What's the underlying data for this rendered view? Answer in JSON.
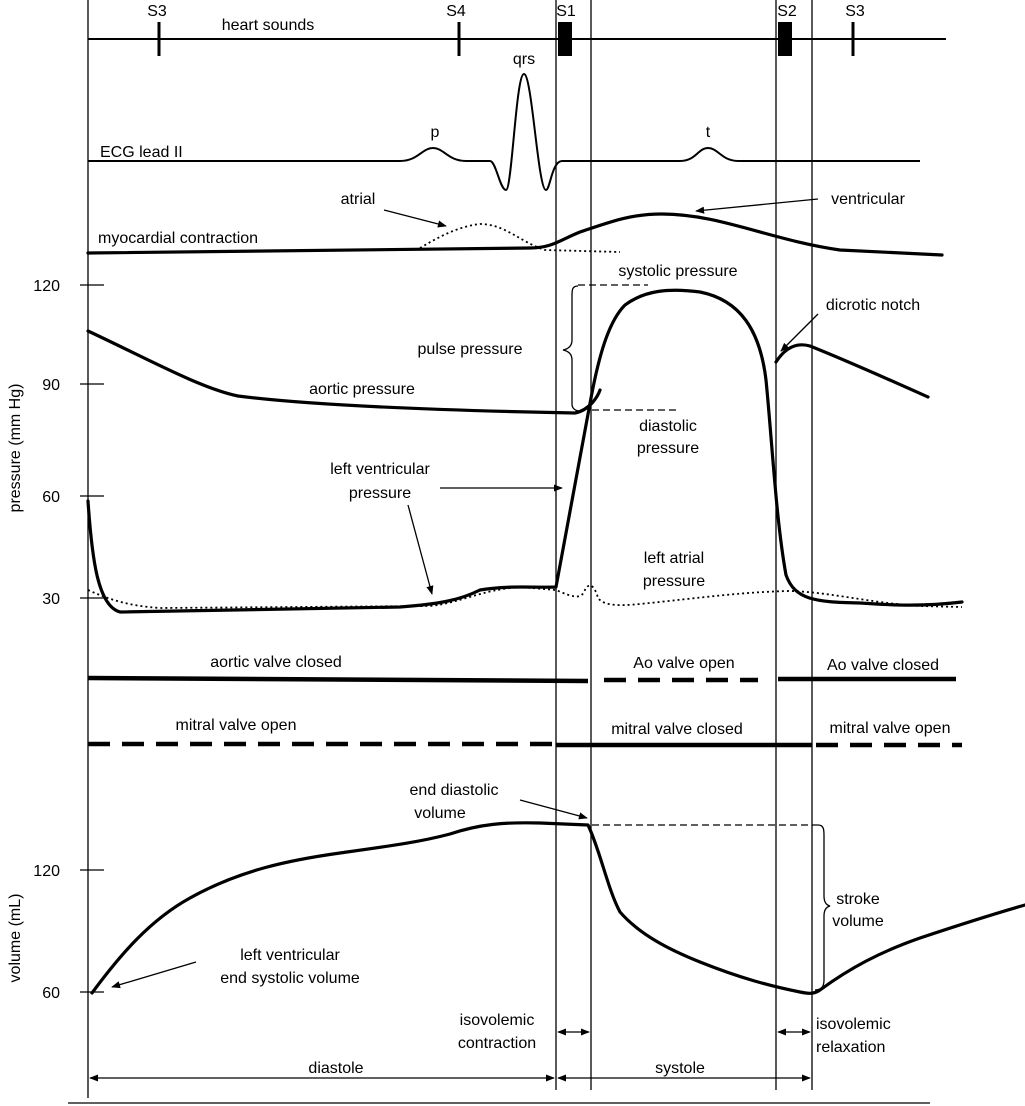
{
  "heart_sounds": {
    "title": "heart sounds",
    "markers": [
      "S3",
      "S4",
      "S1",
      "S2",
      "S3"
    ]
  },
  "ecg": {
    "label": "ECG lead II",
    "waves": [
      "p",
      "qrs",
      "t"
    ]
  },
  "contraction": {
    "label": "myocardial contraction",
    "atrial": "atrial",
    "ventricular": "ventricular"
  },
  "pressure_axis": {
    "label": "pressure (mm Hg)",
    "ticks": [
      "120",
      "90",
      "60",
      "30"
    ]
  },
  "pressure_labels": {
    "systolic": "systolic pressure",
    "pulse": "pulse pressure",
    "dicrotic": "dicrotic notch",
    "aortic": "aortic pressure",
    "diastolic_line1": "diastolic",
    "diastolic_line2": "pressure",
    "lv_line1": "left ventricular",
    "lv_line2": "pressure",
    "la_line1": "left atrial",
    "la_line2": "pressure"
  },
  "valves": {
    "aortic_closed": "aortic valve  closed",
    "ao_open": "Ao valve  open",
    "ao_closed": "Ao valve  closed",
    "mitral_open": "mitral valve  open",
    "mitral_closed": "mitral valve  closed",
    "mitral_open_2": "mitral valve  open"
  },
  "volume_axis": {
    "label": "volume  (mL)",
    "ticks": [
      "120",
      "60"
    ]
  },
  "volume_labels": {
    "edv_line1": "end diastolic",
    "edv_line2": "volume",
    "stroke_line1": "stroke",
    "stroke_line2": "volume",
    "esv_line1": "left ventricular",
    "esv_line2": "end  systolic volume"
  },
  "phases": {
    "iso_contraction_line1": "isovolemic",
    "iso_contraction_line2": "contraction",
    "iso_relaxation_line1": "isovolemic",
    "iso_relaxation_line2": "relaxation",
    "diastole": "diastole",
    "systole": "systole"
  }
}
